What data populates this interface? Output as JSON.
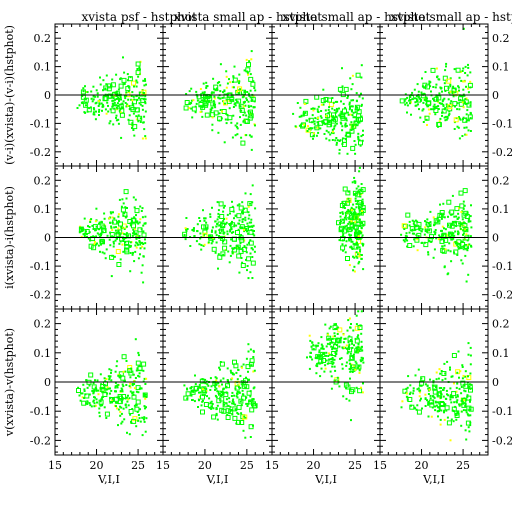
{
  "chart_data": {
    "type": "scatter",
    "grid": "off",
    "layout": {
      "rows": 3,
      "cols": 4
    },
    "colors": {
      "primary": "#00ff00",
      "secondary": "#ffff00",
      "axes": "#000000"
    },
    "xlim": [
      15,
      28
    ],
    "ylim": [
      -0.25,
      0.25
    ],
    "x_ticks": [
      15,
      20,
      25
    ],
    "x_tick_labels": [
      "15",
      "20",
      "25"
    ],
    "y_ticks": [
      0.2,
      0.1,
      0,
      -0.1,
      -0.2
    ],
    "y_tick_labels": [
      "0.2",
      "0.1",
      "0",
      "-0.1",
      "-0.2"
    ],
    "xlabel": "V,I,I",
    "row_ylabels": [
      "(v-i)(xvista)-(v-i)(hstphot)",
      "i(xvista)-i(hstphot)",
      "v(xvista)-v(hstphot)"
    ],
    "column_titles": [
      "xvista psf - hstphot",
      "xvista small ap - hstphot",
      "xvista small ap - hstphot",
      "xvista small ap - hstphot"
    ],
    "panel_envelopes": [
      [
        {
          "center": [
            22.5,
            -0.02
          ],
          "xspan": [
            17.5,
            26.0
          ],
          "yspread": [
            0.04,
            0.16
          ]
        },
        {
          "center": [
            22.0,
            -0.02
          ],
          "xspan": [
            17.5,
            26.0
          ],
          "yspread": [
            0.04,
            0.16
          ]
        },
        {
          "center": [
            22.5,
            -0.08
          ],
          "xspan": [
            17.5,
            26.0
          ],
          "yspread": [
            0.04,
            0.16
          ]
        },
        {
          "center": [
            22.5,
            -0.02
          ],
          "xspan": [
            17.5,
            26.0
          ],
          "yspread": [
            0.04,
            0.16
          ]
        }
      ],
      [
        {
          "center": [
            22.0,
            0.02
          ],
          "xspan": [
            17.5,
            26.0
          ],
          "yspread": [
            0.04,
            0.16
          ]
        },
        {
          "center": [
            22.0,
            0.02
          ],
          "xspan": [
            17.5,
            26.0
          ],
          "yspread": [
            0.04,
            0.16
          ]
        },
        {
          "center": [
            24.5,
            0.05
          ],
          "xspan": [
            23.0,
            26.0
          ],
          "yspread": [
            0.08,
            0.2
          ]
        },
        {
          "center": [
            22.0,
            0.02
          ],
          "xspan": [
            17.5,
            26.0
          ],
          "yspread": [
            0.04,
            0.16
          ]
        }
      ],
      [
        {
          "center": [
            22.5,
            -0.04
          ],
          "xspan": [
            17.5,
            26.0
          ],
          "yspread": [
            0.04,
            0.16
          ]
        },
        {
          "center": [
            22.0,
            -0.04
          ],
          "xspan": [
            17.5,
            26.0
          ],
          "yspread": [
            0.04,
            0.16
          ]
        },
        {
          "center": [
            23.5,
            0.1
          ],
          "xspan": [
            19.0,
            26.0
          ],
          "yspread": [
            0.06,
            0.18
          ]
        },
        {
          "center": [
            22.5,
            -0.05
          ],
          "xspan": [
            17.5,
            26.0
          ],
          "yspread": [
            0.04,
            0.16
          ]
        }
      ]
    ]
  }
}
